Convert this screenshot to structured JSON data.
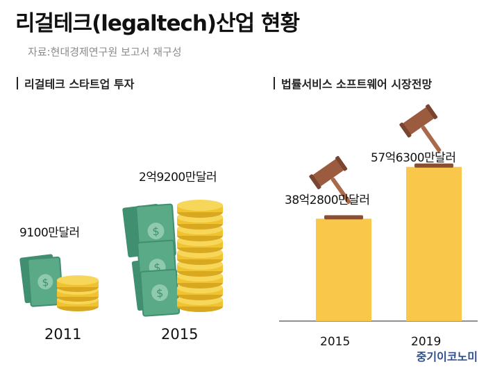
{
  "header": {
    "title": "리걸테크(legaltech)산업 현황",
    "subtitle": "자료:현대경제연구원 보고서 재구성"
  },
  "colors": {
    "bar": "#f9c84a",
    "money": "#4f9e7e",
    "coin": "#f2c330",
    "gavel": "#9a5b3e",
    "axis": "#6b6b6b"
  },
  "chart_data": [
    {
      "type": "bar",
      "title": "리걸테크 스타트업 투자",
      "categories": [
        "2011",
        "2015"
      ],
      "values": [
        9100,
        29200
      ],
      "value_labels": [
        "9100만달러",
        "2억9200만달러"
      ],
      "unit": "만달러",
      "style": "pictogram (money bills and coin stacks)"
    },
    {
      "type": "bar",
      "title": "법률서비스 소프트웨어 시장전망",
      "categories": [
        "2015",
        "2019"
      ],
      "values": [
        382800,
        576300
      ],
      "value_labels": [
        "38억2800만달러",
        "57억6300만달러"
      ],
      "unit": "만달러",
      "ylim": [
        0,
        700000
      ],
      "grid": false
    }
  ],
  "footer": {
    "brand": "중기이코노미"
  }
}
